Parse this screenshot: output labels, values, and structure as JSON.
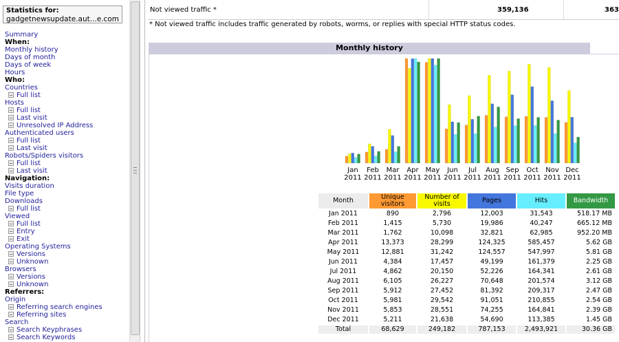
{
  "menu": {
    "stats_label": "Statistics for:",
    "site": "gadgetnewsupdate.aut...e.com",
    "items": [
      {
        "t": "Summary",
        "k": "lk"
      },
      {
        "t": "When:",
        "k": "hd"
      },
      {
        "t": "Monthly history",
        "k": "lk"
      },
      {
        "t": "Days of month",
        "k": "lk"
      },
      {
        "t": "Days of week",
        "k": "lk"
      },
      {
        "t": "Hours",
        "k": "lk"
      },
      {
        "t": "Who:",
        "k": "hd"
      },
      {
        "t": "Countries",
        "k": "lk"
      },
      {
        "t": "Full list",
        "k": "sub"
      },
      {
        "t": "Hosts",
        "k": "lk"
      },
      {
        "t": "Full list",
        "k": "sub"
      },
      {
        "t": "Last visit",
        "k": "sub"
      },
      {
        "t": "Unresolved IP Address",
        "k": "sub"
      },
      {
        "t": "Authenticated users",
        "k": "lk"
      },
      {
        "t": "Full list",
        "k": "sub"
      },
      {
        "t": "Last visit",
        "k": "sub"
      },
      {
        "t": "Robots/Spiders visitors",
        "k": "lk"
      },
      {
        "t": "Full list",
        "k": "sub"
      },
      {
        "t": "Last visit",
        "k": "sub"
      },
      {
        "t": "Navigation:",
        "k": "hd"
      },
      {
        "t": "Visits duration",
        "k": "lk"
      },
      {
        "t": "File type",
        "k": "lk"
      },
      {
        "t": "Downloads",
        "k": "lk"
      },
      {
        "t": "Full list",
        "k": "sub"
      },
      {
        "t": "Viewed",
        "k": "lk"
      },
      {
        "t": "Full list",
        "k": "sub"
      },
      {
        "t": "Entry",
        "k": "sub"
      },
      {
        "t": "Exit",
        "k": "sub"
      },
      {
        "t": "Operating Systems",
        "k": "lk"
      },
      {
        "t": "Versions",
        "k": "sub"
      },
      {
        "t": "Unknown",
        "k": "sub"
      },
      {
        "t": "Browsers",
        "k": "lk"
      },
      {
        "t": "Versions",
        "k": "sub"
      },
      {
        "t": "Unknown",
        "k": "sub"
      },
      {
        "t": "Referrers:",
        "k": "hd"
      },
      {
        "t": "Origin",
        "k": "lk"
      },
      {
        "t": "Referring search engines",
        "k": "sub"
      },
      {
        "t": "Referring sites",
        "k": "sub"
      },
      {
        "t": "Search",
        "k": "lk"
      },
      {
        "t": "Search Keyphrases",
        "k": "sub"
      },
      {
        "t": "Search Keywords",
        "k": "sub"
      }
    ]
  },
  "not_viewed": {
    "label": "Not viewed traffic *",
    "value1": "359,136",
    "value2": "363,"
  },
  "note": "* Not viewed traffic includes traffic generated by robots, worms, or replies with special HTTP status codes.",
  "monthly": {
    "title": "Monthly history",
    "headers": {
      "month": "Month",
      "unique_visitors": "Unique visitors",
      "visits": "Number of visits",
      "pages": "Pages",
      "hits": "Hits",
      "bandwidth": "Bandwidth"
    },
    "rows": [
      {
        "month": "Jan 2011",
        "uv": "890",
        "visits": "2,796",
        "pages": "12,003",
        "hits": "31,543",
        "bw": "518.17 MB"
      },
      {
        "month": "Feb 2011",
        "uv": "1,415",
        "visits": "5,730",
        "pages": "19,986",
        "hits": "40,247",
        "bw": "665.12 MB"
      },
      {
        "month": "Mar 2011",
        "uv": "1,762",
        "visits": "10,098",
        "pages": "32,821",
        "hits": "62,985",
        "bw": "952.20 MB"
      },
      {
        "month": "Apr 2011",
        "uv": "13,373",
        "visits": "28,299",
        "pages": "124,325",
        "hits": "585,457",
        "bw": "5.62 GB"
      },
      {
        "month": "May 2011",
        "uv": "12,881",
        "visits": "31,242",
        "pages": "124,557",
        "hits": "547,997",
        "bw": "5.81 GB"
      },
      {
        "month": "Jun 2011",
        "uv": "4,384",
        "visits": "17,457",
        "pages": "49,199",
        "hits": "161,379",
        "bw": "2.25 GB"
      },
      {
        "month": "Jul 2011",
        "uv": "4,862",
        "visits": "20,150",
        "pages": "52,226",
        "hits": "164,341",
        "bw": "2.61 GB"
      },
      {
        "month": "Aug 2011",
        "uv": "6,105",
        "visits": "26,227",
        "pages": "70,648",
        "hits": "201,574",
        "bw": "3.12 GB"
      },
      {
        "month": "Sep 2011",
        "uv": "5,912",
        "visits": "27,452",
        "pages": "81,392",
        "hits": "209,317",
        "bw": "2.47 GB"
      },
      {
        "month": "Oct 2011",
        "uv": "5,981",
        "visits": "29,542",
        "pages": "91,051",
        "hits": "210,855",
        "bw": "2.54 GB"
      },
      {
        "month": "Nov 2011",
        "uv": "5,853",
        "visits": "28,551",
        "pages": "74,255",
        "hits": "164,841",
        "bw": "2.39 GB"
      },
      {
        "month": "Dec 2011",
        "uv": "5,211",
        "visits": "21,638",
        "pages": "54,690",
        "hits": "113,385",
        "bw": "1.45 GB"
      }
    ],
    "total": {
      "month": "Total",
      "uv": "68,629",
      "visits": "249,182",
      "pages": "787,153",
      "hits": "2,493,921",
      "bw": "30.36 GB"
    }
  },
  "colors": {
    "unique_visitors": "#ff9933",
    "visits": "#f8f800",
    "pages": "#4477dd",
    "hits": "#66eeff",
    "bandwidth": "#339944"
  },
  "chart_data": {
    "type": "bar",
    "title": "Monthly history",
    "categories": [
      {
        "mon": "Jan",
        "yr": "2011"
      },
      {
        "mon": "Feb",
        "yr": "2011"
      },
      {
        "mon": "Mar",
        "yr": "2011"
      },
      {
        "mon": "Apr",
        "yr": "2011"
      },
      {
        "mon": "May",
        "yr": "2011"
      },
      {
        "mon": "Jun",
        "yr": "2011"
      },
      {
        "mon": "Jul",
        "yr": "2011"
      },
      {
        "mon": "Aug",
        "yr": "2011"
      },
      {
        "mon": "Sep",
        "yr": "2011"
      },
      {
        "mon": "Oct",
        "yr": "2011"
      },
      {
        "mon": "Nov",
        "yr": "2011"
      },
      {
        "mon": "Dec",
        "yr": "2011"
      }
    ],
    "series": [
      {
        "name": "Unique visitors",
        "color": "#ff9933",
        "values": [
          890,
          1415,
          1762,
          13373,
          12881,
          4384,
          4862,
          6105,
          5912,
          5981,
          5853,
          5211
        ]
      },
      {
        "name": "Number of visits",
        "color": "#f8f800",
        "values": [
          2796,
          5730,
          10098,
          28299,
          31242,
          17457,
          20150,
          26227,
          27452,
          29542,
          28551,
          21638
        ]
      },
      {
        "name": "Pages",
        "color": "#4477dd",
        "values": [
          12003,
          19986,
          32821,
          124325,
          124557,
          49199,
          52226,
          70648,
          81392,
          91051,
          74255,
          54690
        ]
      },
      {
        "name": "Hits",
        "color": "#66eeff",
        "values": [
          31543,
          40247,
          62985,
          585457,
          547997,
          161379,
          164341,
          201574,
          209317,
          210855,
          164841,
          113385
        ]
      },
      {
        "name": "Bandwidth (GB)",
        "color": "#339944",
        "values": [
          0.506,
          0.65,
          0.93,
          5.62,
          5.81,
          2.25,
          2.61,
          3.12,
          2.47,
          2.54,
          2.39,
          1.45
        ]
      }
    ]
  }
}
